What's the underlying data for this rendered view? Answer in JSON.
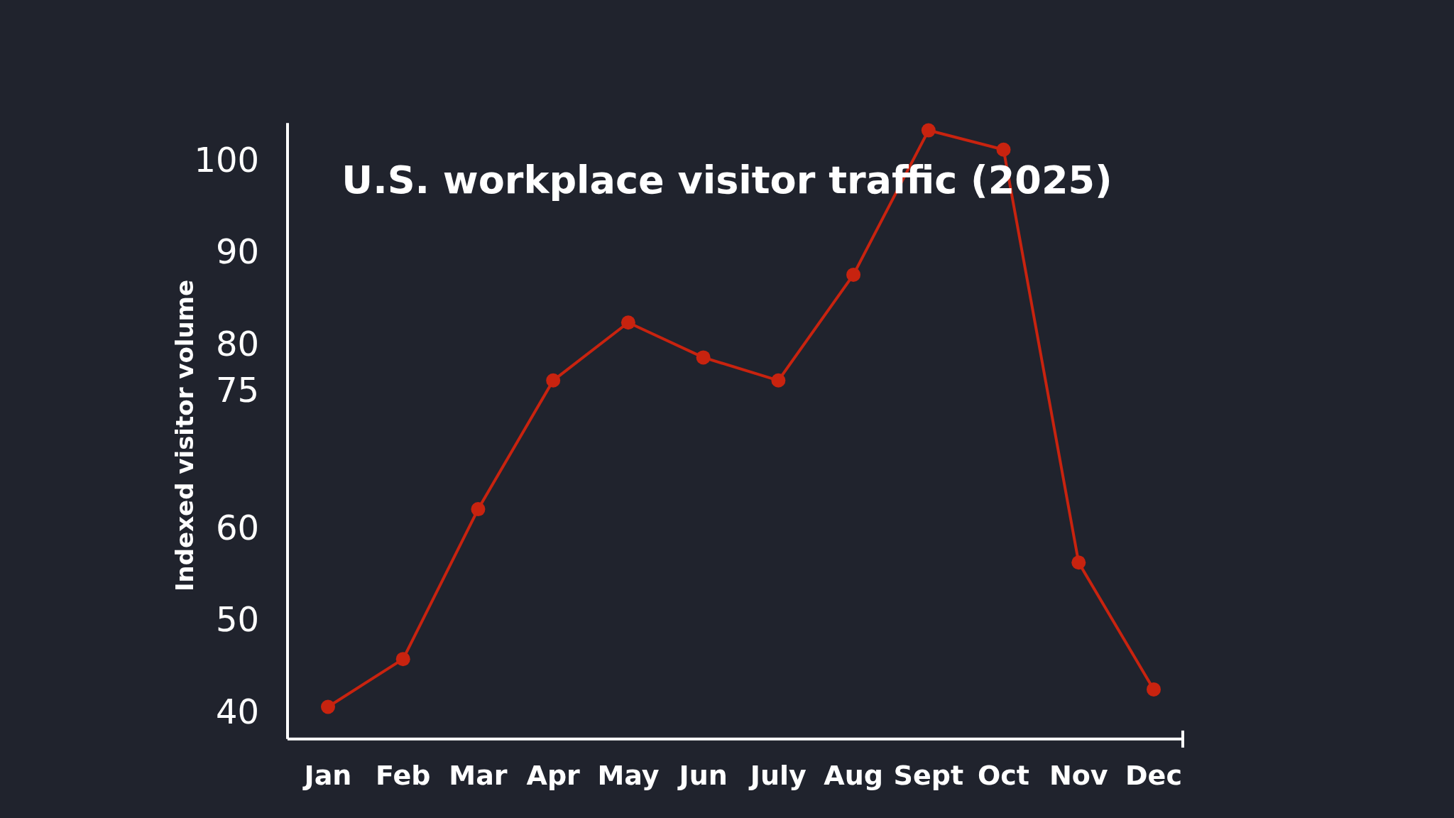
{
  "chart_data": {
    "type": "line",
    "title": "U.S. workplace visitor traffic (2025)",
    "ylabel": "Indexed visitor volume",
    "categories": [
      "Jan",
      "Feb",
      "Mar",
      "Apr",
      "May",
      "Jun",
      "July",
      "Aug",
      "Sept",
      "Oct",
      "Nov",
      "Dec"
    ],
    "series": [
      {
        "color": "#c8230f",
        "values": [
          40.5,
          45.7,
          62,
          76,
          82.3,
          78.5,
          76,
          87.5,
          103.2,
          101.1,
          56.2,
          42.4
        ]
      }
    ],
    "ylim": [
      37,
      104
    ],
    "yticks": [
      40,
      50,
      60,
      75,
      80,
      90,
      100
    ],
    "marker": "circle",
    "line_style": "solid"
  }
}
